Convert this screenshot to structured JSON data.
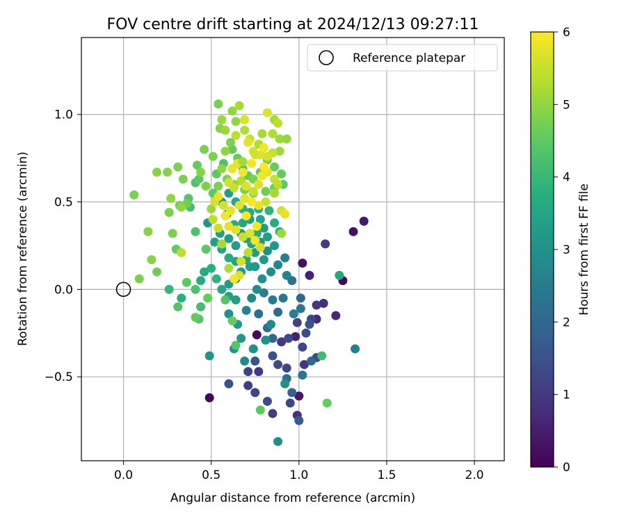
{
  "chart_data": {
    "type": "scatter",
    "title": "FOV centre drift starting at 2024/12/13 09:27:11",
    "xlabel": "Angular distance from reference (arcmin)",
    "ylabel": "Rotation from reference (arcmin)",
    "xlim": [
      -0.24,
      2.17
    ],
    "ylim": [
      -0.98,
      1.44
    ],
    "xticks": [
      0.0,
      0.5,
      1.0,
      1.5,
      2.0
    ],
    "xtick_labels": [
      "0.0",
      "0.5",
      "1.0",
      "1.5",
      "2.0"
    ],
    "yticks": [
      -0.5,
      0.0,
      0.5,
      1.0
    ],
    "ytick_labels": [
      "−0.5",
      "0.0",
      "0.5",
      "1.0"
    ],
    "grid": true,
    "legend": {
      "position": "top-right",
      "label": "Reference platepar"
    },
    "reference_point": {
      "x": 0.0,
      "y": 0.0
    },
    "colorbar": {
      "label": "Hours from first FF file",
      "range": [
        0,
        6
      ],
      "ticks": [
        0,
        1,
        2,
        3,
        4,
        5,
        6
      ],
      "tick_labels": [
        "0",
        "1",
        "2",
        "3",
        "4",
        "5",
        "6"
      ],
      "colormap": "viridis"
    },
    "point_fields": [
      "x",
      "y",
      "hours"
    ],
    "points": [
      [
        1.37,
        0.39,
        0.4
      ],
      [
        1.31,
        0.33,
        0.3
      ],
      [
        1.25,
        0.05,
        0.1
      ],
      [
        1.15,
        0.26,
        1.1
      ],
      [
        0.49,
        -0.62,
        0.1
      ],
      [
        1.02,
        0.15,
        0.3
      ],
      [
        1.06,
        0.08,
        0.6
      ],
      [
        1.14,
        -0.08,
        0.8
      ],
      [
        1.21,
        -0.15,
        0.7
      ],
      [
        1.1,
        -0.09,
        1.0
      ],
      [
        1.1,
        -0.17,
        0.7
      ],
      [
        1.0,
        -0.61,
        0.4
      ],
      [
        0.76,
        -0.26,
        0.2
      ],
      [
        0.98,
        -0.27,
        0.6
      ],
      [
        0.9,
        -0.3,
        1.0
      ],
      [
        1.07,
        -0.17,
        1.3
      ],
      [
        1.03,
        -0.43,
        1.0
      ],
      [
        1.1,
        -0.39,
        1.3
      ],
      [
        0.85,
        -0.71,
        1.1
      ],
      [
        0.99,
        -0.72,
        0.8
      ],
      [
        0.95,
        -0.65,
        1.3
      ],
      [
        0.82,
        -0.64,
        1.4
      ],
      [
        0.75,
        -0.59,
        1.3
      ],
      [
        0.77,
        -0.47,
        1.0
      ],
      [
        0.71,
        -0.47,
        1.2
      ],
      [
        0.71,
        -0.55,
        1.1
      ],
      [
        0.6,
        -0.54,
        1.5
      ],
      [
        0.75,
        -0.41,
        1.6
      ],
      [
        0.85,
        -0.38,
        1.5
      ],
      [
        0.88,
        -0.43,
        1.4
      ],
      [
        0.93,
        -0.45,
        1.3
      ],
      [
        0.94,
        -0.28,
        1.4
      ],
      [
        0.99,
        -0.19,
        1.2
      ],
      [
        1.06,
        -0.2,
        1.6
      ],
      [
        1.04,
        -0.25,
        1.4
      ],
      [
        1.02,
        -0.33,
        1.3
      ],
      [
        1.0,
        -0.75,
        1.7
      ],
      [
        0.96,
        -0.59,
        1.9
      ],
      [
        0.93,
        -0.51,
        2.1
      ],
      [
        1.02,
        -0.49,
        2.3
      ],
      [
        1.07,
        -0.41,
        2.0
      ],
      [
        0.85,
        -0.28,
        2.0
      ],
      [
        0.82,
        -0.22,
        2.2
      ],
      [
        0.77,
        -0.14,
        2.2
      ],
      [
        0.88,
        -0.13,
        2.1
      ],
      [
        0.91,
        -0.05,
        2.4
      ],
      [
        0.96,
        0.05,
        2.2
      ],
      [
        1.01,
        -0.05,
        2.0
      ],
      [
        1.01,
        -0.11,
        2.4
      ],
      [
        0.97,
        -0.14,
        2.6
      ],
      [
        0.85,
        -0.06,
        2.5
      ],
      [
        0.8,
        -0.02,
        2.6
      ],
      [
        0.73,
        -0.05,
        2.8
      ],
      [
        0.7,
        -0.12,
        2.7
      ],
      [
        0.76,
        0.0,
        3.0
      ],
      [
        0.79,
        0.06,
        3.0
      ],
      [
        0.84,
        0.1,
        2.9
      ],
      [
        0.88,
        0.14,
        2.8
      ],
      [
        0.92,
        0.18,
        2.6
      ],
      [
        0.93,
        0.08,
        2.7
      ],
      [
        0.84,
        -0.2,
        2.9
      ],
      [
        0.81,
        -0.29,
        3.0
      ],
      [
        0.74,
        -0.34,
        3.0
      ],
      [
        0.69,
        -0.41,
        2.9
      ],
      [
        0.63,
        -0.34,
        3.1
      ],
      [
        1.23,
        0.08,
        3.6
      ],
      [
        1.32,
        -0.34,
        2.6
      ],
      [
        0.49,
        -0.38,
        3.1
      ],
      [
        0.88,
        -0.87,
        3.0
      ],
      [
        0.92,
        -0.54,
        3.0
      ],
      [
        0.67,
        -0.28,
        3.2
      ],
      [
        0.65,
        -0.2,
        3.2
      ],
      [
        0.6,
        -0.14,
        3.0
      ],
      [
        0.64,
        -0.06,
        3.3
      ],
      [
        0.6,
        -0.04,
        3.4
      ],
      [
        0.56,
        0.0,
        3.6
      ],
      [
        0.6,
        0.03,
        3.3
      ],
      [
        0.64,
        0.06,
        3.1
      ],
      [
        0.67,
        0.1,
        3.2
      ],
      [
        0.72,
        0.13,
        3.4
      ],
      [
        0.75,
        0.21,
        3.3
      ],
      [
        0.78,
        0.27,
        3.1
      ],
      [
        0.82,
        0.3,
        3.3
      ],
      [
        0.86,
        0.25,
        3.2
      ],
      [
        0.82,
        0.22,
        3.0
      ],
      [
        0.8,
        0.17,
        3.2
      ],
      [
        0.75,
        0.13,
        3.2
      ],
      [
        0.7,
        0.17,
        3.6
      ],
      [
        0.64,
        0.16,
        3.5
      ],
      [
        0.6,
        0.18,
        3.7
      ],
      [
        0.56,
        0.23,
        3.6
      ],
      [
        0.52,
        0.27,
        3.4
      ],
      [
        0.48,
        0.38,
        3.1
      ],
      [
        0.55,
        0.32,
        3.4
      ],
      [
        0.6,
        0.29,
        3.4
      ],
      [
        0.64,
        0.25,
        3.3
      ],
      [
        0.67,
        0.32,
        3.2
      ],
      [
        0.7,
        0.29,
        3.4
      ],
      [
        0.73,
        0.26,
        3.6
      ],
      [
        0.76,
        0.32,
        3.7
      ],
      [
        0.8,
        0.35,
        3.4
      ],
      [
        0.78,
        0.4,
        3.5
      ],
      [
        0.72,
        0.4,
        3.3
      ],
      [
        0.68,
        0.38,
        3.6
      ],
      [
        0.63,
        0.37,
        3.7
      ],
      [
        0.59,
        0.43,
        3.5
      ],
      [
        0.56,
        0.5,
        3.2
      ],
      [
        0.6,
        0.55,
        3.4
      ],
      [
        0.64,
        0.5,
        3.6
      ],
      [
        0.68,
        0.46,
        3.8
      ],
      [
        0.72,
        0.44,
        3.6
      ],
      [
        0.77,
        0.46,
        3.8
      ],
      [
        0.83,
        0.45,
        3.9
      ],
      [
        0.86,
        0.38,
        3.7
      ],
      [
        0.89,
        0.33,
        3.8
      ],
      [
        0.53,
        0.06,
        3.9
      ],
      [
        0.5,
        0.12,
        3.8
      ],
      [
        0.46,
        0.1,
        3.7
      ],
      [
        0.44,
        0.05,
        3.7
      ],
      [
        0.41,
        0.0,
        4.3
      ],
      [
        0.44,
        -0.1,
        4.2
      ],
      [
        0.43,
        -0.17,
        4.4
      ],
      [
        0.41,
        -0.16,
        4.6
      ],
      [
        0.48,
        -0.05,
        4.6
      ],
      [
        0.58,
        -0.06,
        4.4
      ],
      [
        0.62,
        -0.18,
        4.6
      ],
      [
        0.64,
        -0.32,
        4.4
      ],
      [
        0.78,
        -0.69,
        4.5
      ],
      [
        1.16,
        -0.65,
        4.6
      ],
      [
        1.13,
        -0.38,
        4.1
      ],
      [
        0.31,
        -0.1,
        4.4
      ],
      [
        0.33,
        -0.05,
        3.8
      ],
      [
        0.26,
        0.0,
        4.0
      ],
      [
        0.36,
        0.04,
        4.5
      ],
      [
        0.47,
        0.23,
        4.5
      ],
      [
        0.41,
        0.33,
        4.3
      ],
      [
        0.38,
        0.47,
        4.2
      ],
      [
        0.37,
        0.52,
        4.4
      ],
      [
        0.41,
        0.61,
        4.3
      ],
      [
        0.43,
        0.63,
        4.5
      ],
      [
        0.47,
        0.59,
        4.8
      ],
      [
        0.51,
        0.55,
        4.5
      ],
      [
        0.54,
        0.59,
        4.8
      ],
      [
        0.53,
        0.66,
        4.5
      ],
      [
        0.57,
        0.72,
        4.3
      ],
      [
        0.62,
        0.8,
        4.6
      ],
      [
        0.65,
        0.75,
        4.6
      ],
      [
        0.68,
        0.69,
        4.4
      ],
      [
        0.71,
        0.65,
        4.6
      ],
      [
        0.74,
        0.63,
        4.8
      ],
      [
        0.78,
        0.67,
        4.6
      ],
      [
        0.82,
        0.74,
        4.7
      ],
      [
        0.86,
        0.7,
        4.6
      ],
      [
        0.9,
        0.66,
        4.6
      ],
      [
        0.91,
        0.6,
        4.5
      ],
      [
        0.86,
        0.58,
        4.7
      ],
      [
        0.81,
        0.56,
        4.7
      ],
      [
        0.74,
        0.55,
        4.9
      ],
      [
        0.69,
        0.57,
        4.8
      ],
      [
        0.63,
        0.6,
        5.0
      ],
      [
        0.59,
        0.63,
        4.8
      ],
      [
        0.56,
        0.69,
        5.0
      ],
      [
        0.58,
        0.79,
        5.0
      ],
      [
        0.61,
        0.84,
        4.8
      ],
      [
        0.55,
        0.92,
        4.9
      ],
      [
        0.51,
        0.76,
        4.8
      ],
      [
        0.46,
        0.8,
        4.8
      ],
      [
        0.42,
        0.71,
        4.6
      ],
      [
        0.44,
        0.67,
        4.9
      ],
      [
        0.34,
        0.63,
        4.8
      ],
      [
        0.31,
        0.7,
        4.8
      ],
      [
        0.25,
        0.67,
        4.9
      ],
      [
        0.19,
        0.67,
        4.9
      ],
      [
        0.06,
        0.54,
        4.8
      ],
      [
        0.27,
        0.52,
        5.0
      ],
      [
        0.26,
        0.44,
        4.8
      ],
      [
        0.32,
        0.48,
        4.7
      ],
      [
        0.36,
        0.49,
        4.7
      ],
      [
        0.33,
        0.47,
        5.0
      ],
      [
        0.14,
        0.33,
        4.9
      ],
      [
        0.28,
        0.32,
        4.8
      ],
      [
        0.3,
        0.23,
        4.6
      ],
      [
        0.16,
        0.17,
        4.9
      ],
      [
        0.19,
        0.1,
        4.7
      ],
      [
        0.09,
        0.06,
        4.8
      ],
      [
        0.54,
        1.06,
        4.8
      ],
      [
        0.62,
        1.02,
        5.0
      ],
      [
        0.66,
        1.05,
        5.2
      ],
      [
        0.64,
        0.96,
        5.0
      ],
      [
        0.56,
        0.97,
        5.1
      ],
      [
        0.58,
        0.91,
        5.1
      ],
      [
        0.64,
        0.88,
        5.4
      ],
      [
        0.69,
        0.91,
        5.3
      ],
      [
        0.72,
        0.86,
        5.5
      ],
      [
        0.77,
        0.83,
        5.3
      ],
      [
        0.79,
        0.89,
        5.2
      ],
      [
        0.86,
        0.97,
        5.2
      ],
      [
        0.85,
        0.89,
        5.3
      ],
      [
        0.89,
        0.86,
        5.1
      ],
      [
        0.93,
        0.86,
        5.0
      ],
      [
        0.89,
        0.79,
        5.1
      ],
      [
        0.85,
        0.78,
        5.5
      ],
      [
        0.82,
        0.76,
        5.6
      ],
      [
        0.78,
        0.77,
        5.7
      ],
      [
        0.75,
        0.77,
        5.6
      ],
      [
        0.73,
        0.72,
        5.9
      ],
      [
        0.68,
        0.67,
        5.9
      ],
      [
        0.65,
        0.72,
        5.8
      ],
      [
        0.62,
        0.69,
        5.8
      ],
      [
        0.6,
        0.61,
        5.6
      ],
      [
        0.63,
        0.58,
        5.5
      ],
      [
        0.67,
        0.62,
        5.3
      ],
      [
        0.7,
        0.59,
        5.7
      ],
      [
        0.74,
        0.56,
        5.5
      ],
      [
        0.77,
        0.6,
        5.7
      ],
      [
        0.79,
        0.65,
        5.9
      ],
      [
        0.82,
        0.67,
        5.8
      ],
      [
        0.86,
        0.63,
        5.5
      ],
      [
        0.88,
        0.6,
        5.4
      ],
      [
        0.86,
        0.55,
        5.2
      ],
      [
        0.81,
        0.5,
        5.5
      ],
      [
        0.77,
        0.48,
        5.8
      ],
      [
        0.73,
        0.5,
        6.0
      ],
      [
        0.69,
        0.52,
        5.8
      ],
      [
        0.66,
        0.48,
        5.7
      ],
      [
        0.61,
        0.45,
        5.8
      ],
      [
        0.58,
        0.42,
        5.9
      ],
      [
        0.6,
        0.36,
        5.8
      ],
      [
        0.64,
        0.34,
        5.7
      ],
      [
        0.68,
        0.3,
        5.5
      ],
      [
        0.72,
        0.32,
        5.7
      ],
      [
        0.75,
        0.28,
        5.9
      ],
      [
        0.78,
        0.24,
        5.6
      ],
      [
        0.71,
        0.21,
        5.4
      ],
      [
        0.67,
        0.16,
        5.6
      ],
      [
        0.66,
        0.08,
        5.7
      ],
      [
        0.63,
        0.06,
        5.9
      ],
      [
        0.6,
        0.12,
        5.3
      ],
      [
        0.56,
        0.26,
        5.2
      ],
      [
        0.54,
        0.35,
        5.5
      ],
      [
        0.51,
        0.4,
        5.4
      ],
      [
        0.5,
        0.46,
        5.1
      ],
      [
        0.52,
        0.5,
        5.6
      ],
      [
        0.54,
        0.53,
        5.8
      ],
      [
        0.57,
        0.48,
        5.6
      ],
      [
        0.9,
        0.45,
        5.6
      ],
      [
        0.92,
        0.43,
        5.8
      ],
      [
        0.9,
        0.32,
        5.1
      ],
      [
        0.33,
        0.21,
        5.4
      ],
      [
        0.82,
        1.01,
        5.7
      ],
      [
        0.88,
        0.95,
        5.4
      ],
      [
        0.69,
        0.97,
        5.7
      ],
      [
        0.71,
        0.84,
        5.8
      ],
      [
        0.8,
        0.81,
        5.9
      ],
      [
        0.8,
        0.7,
        6.0
      ],
      [
        0.74,
        0.79,
        5.6
      ],
      [
        0.68,
        0.73,
        5.2
      ],
      [
        0.76,
        0.36,
        5.9
      ],
      [
        0.7,
        0.42,
        6.0
      ]
    ]
  }
}
